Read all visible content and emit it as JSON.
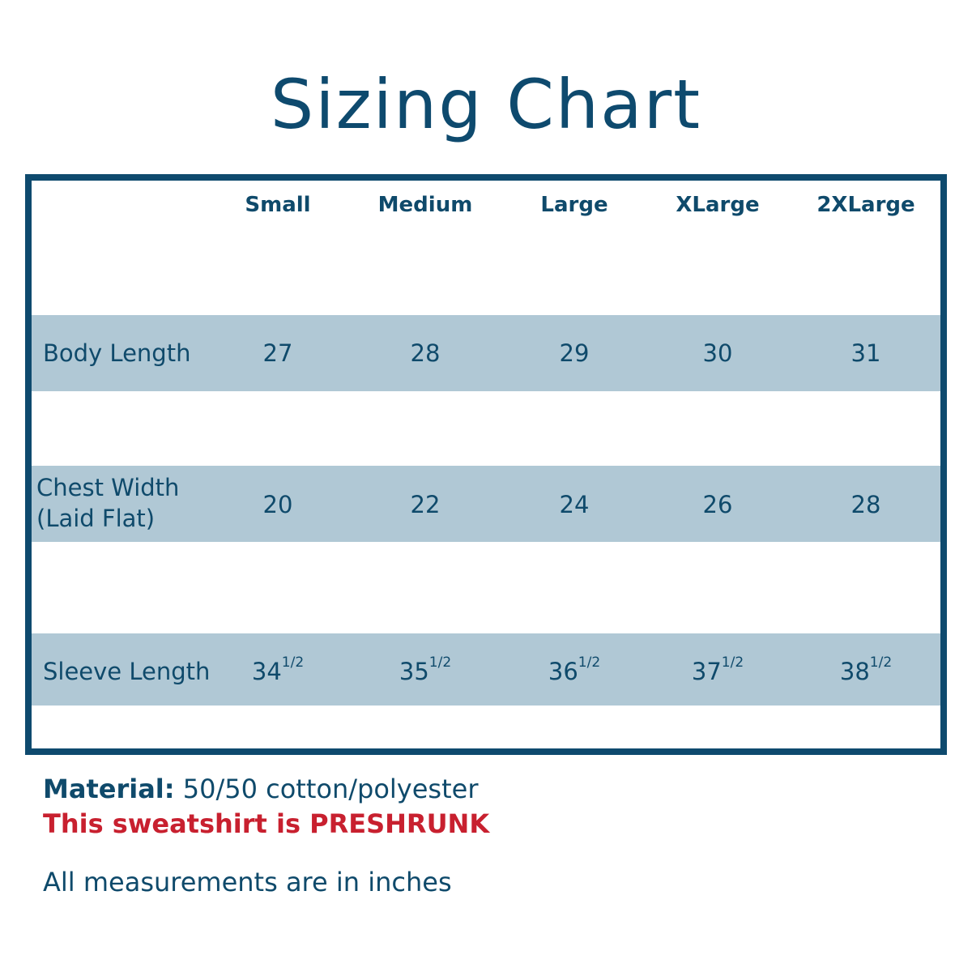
{
  "title": "Sizing Chart",
  "colors": {
    "primary": "#0e4a6e",
    "band": "#b0c8d5",
    "accent_red": "#c8202f"
  },
  "table": {
    "columns": [
      "Small",
      "Medium",
      "Large",
      "XLarge",
      "2XLarge"
    ],
    "rows": [
      {
        "label": "Body Length",
        "values": [
          "27",
          "28",
          "29",
          "30",
          "31"
        ],
        "fraction": ""
      },
      {
        "label": "Chest Width",
        "label2": "(Laid Flat)",
        "values": [
          "20",
          "22",
          "24",
          "26",
          "28"
        ],
        "fraction": ""
      },
      {
        "label": "Sleeve Length",
        "values": [
          "34",
          "35",
          "36",
          "37",
          "38"
        ],
        "fraction": "1/2"
      }
    ]
  },
  "footer": {
    "material_label": "Material:",
    "material_value": " 50/50 cotton/polyester",
    "preshrunk": "This sweatshirt is PRESHRUNK",
    "units_note": "All measurements are in inches"
  }
}
